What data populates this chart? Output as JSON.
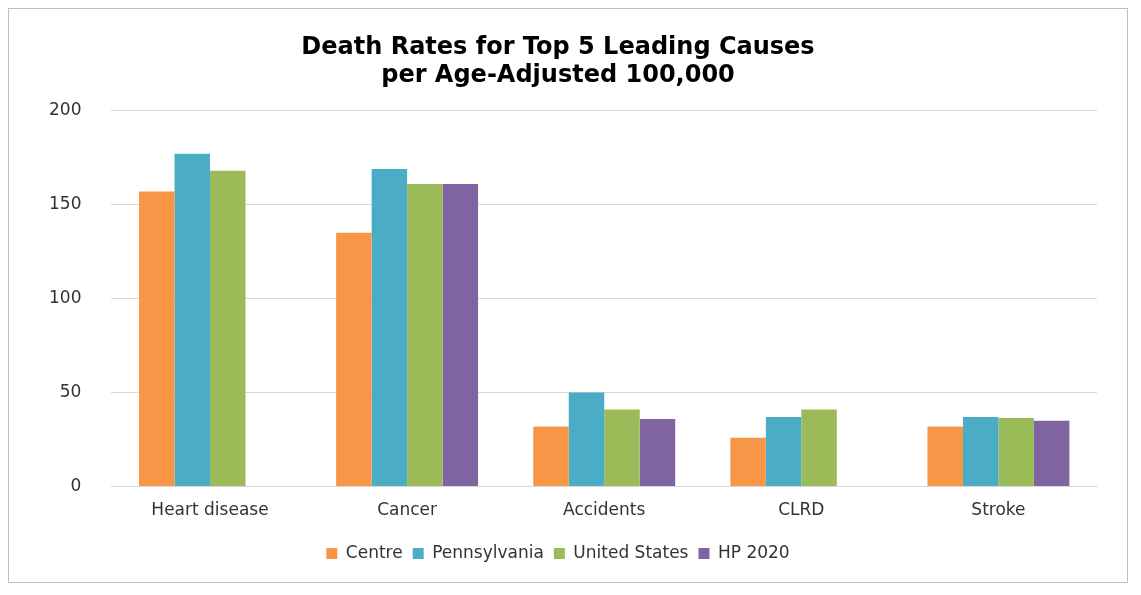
{
  "chart_data": {
    "type": "bar",
    "title": "Death Rates for Top 5 Leading Causes\nper Age-Adjusted 100,000",
    "categories": [
      "Heart disease",
      "Cancer",
      "Accidents",
      "CLRD",
      "Stroke"
    ],
    "series": [
      {
        "name": "Centre",
        "color": "#f79646",
        "values": [
          157,
          135,
          32,
          26,
          32
        ]
      },
      {
        "name": "Pennsylvania",
        "color": "#4bacc6",
        "values": [
          177,
          169,
          50,
          37,
          37
        ]
      },
      {
        "name": "United States",
        "color": "#9bbb59",
        "values": [
          168,
          161,
          41,
          41,
          36.5
        ]
      },
      {
        "name": "HP 2020",
        "color": "#8064a2",
        "values": [
          null,
          161,
          36,
          null,
          35
        ]
      }
    ],
    "ylim": [
      0,
      200
    ],
    "yticks": [
      0,
      50,
      100,
      150,
      200
    ],
    "grid": "y",
    "legend": "bottom"
  }
}
